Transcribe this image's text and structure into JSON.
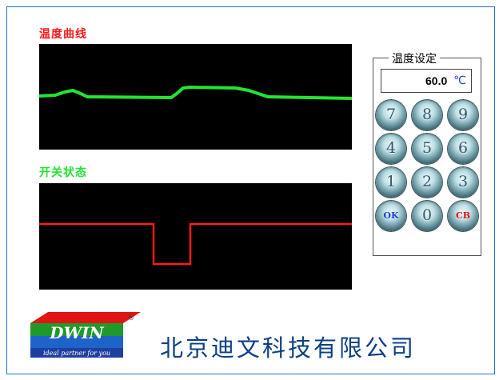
{
  "temp_curve_panel": {
    "label": "温度曲线",
    "label_color": "#ff1a1a",
    "line_color": "#22e52f"
  },
  "switch_state_panel": {
    "label": "开关状态",
    "label_color": "#22e52f",
    "line_color": "#ff1a1a"
  },
  "temp_setting": {
    "group_title": "温度设定",
    "value": "60.0",
    "unit": "℃"
  },
  "keypad": {
    "keys": [
      "7",
      "8",
      "9",
      "4",
      "5",
      "6",
      "1",
      "2",
      "3",
      "OK",
      "0",
      "CB"
    ]
  },
  "logo": {
    "brand": "DWIN",
    "registered": "®",
    "tagline": "ideal partner for you"
  },
  "company_name": "北京迪文科技有限公司",
  "colors": {
    "frame_border": "#1e6fd9",
    "company_text": "#0b3f84"
  }
}
